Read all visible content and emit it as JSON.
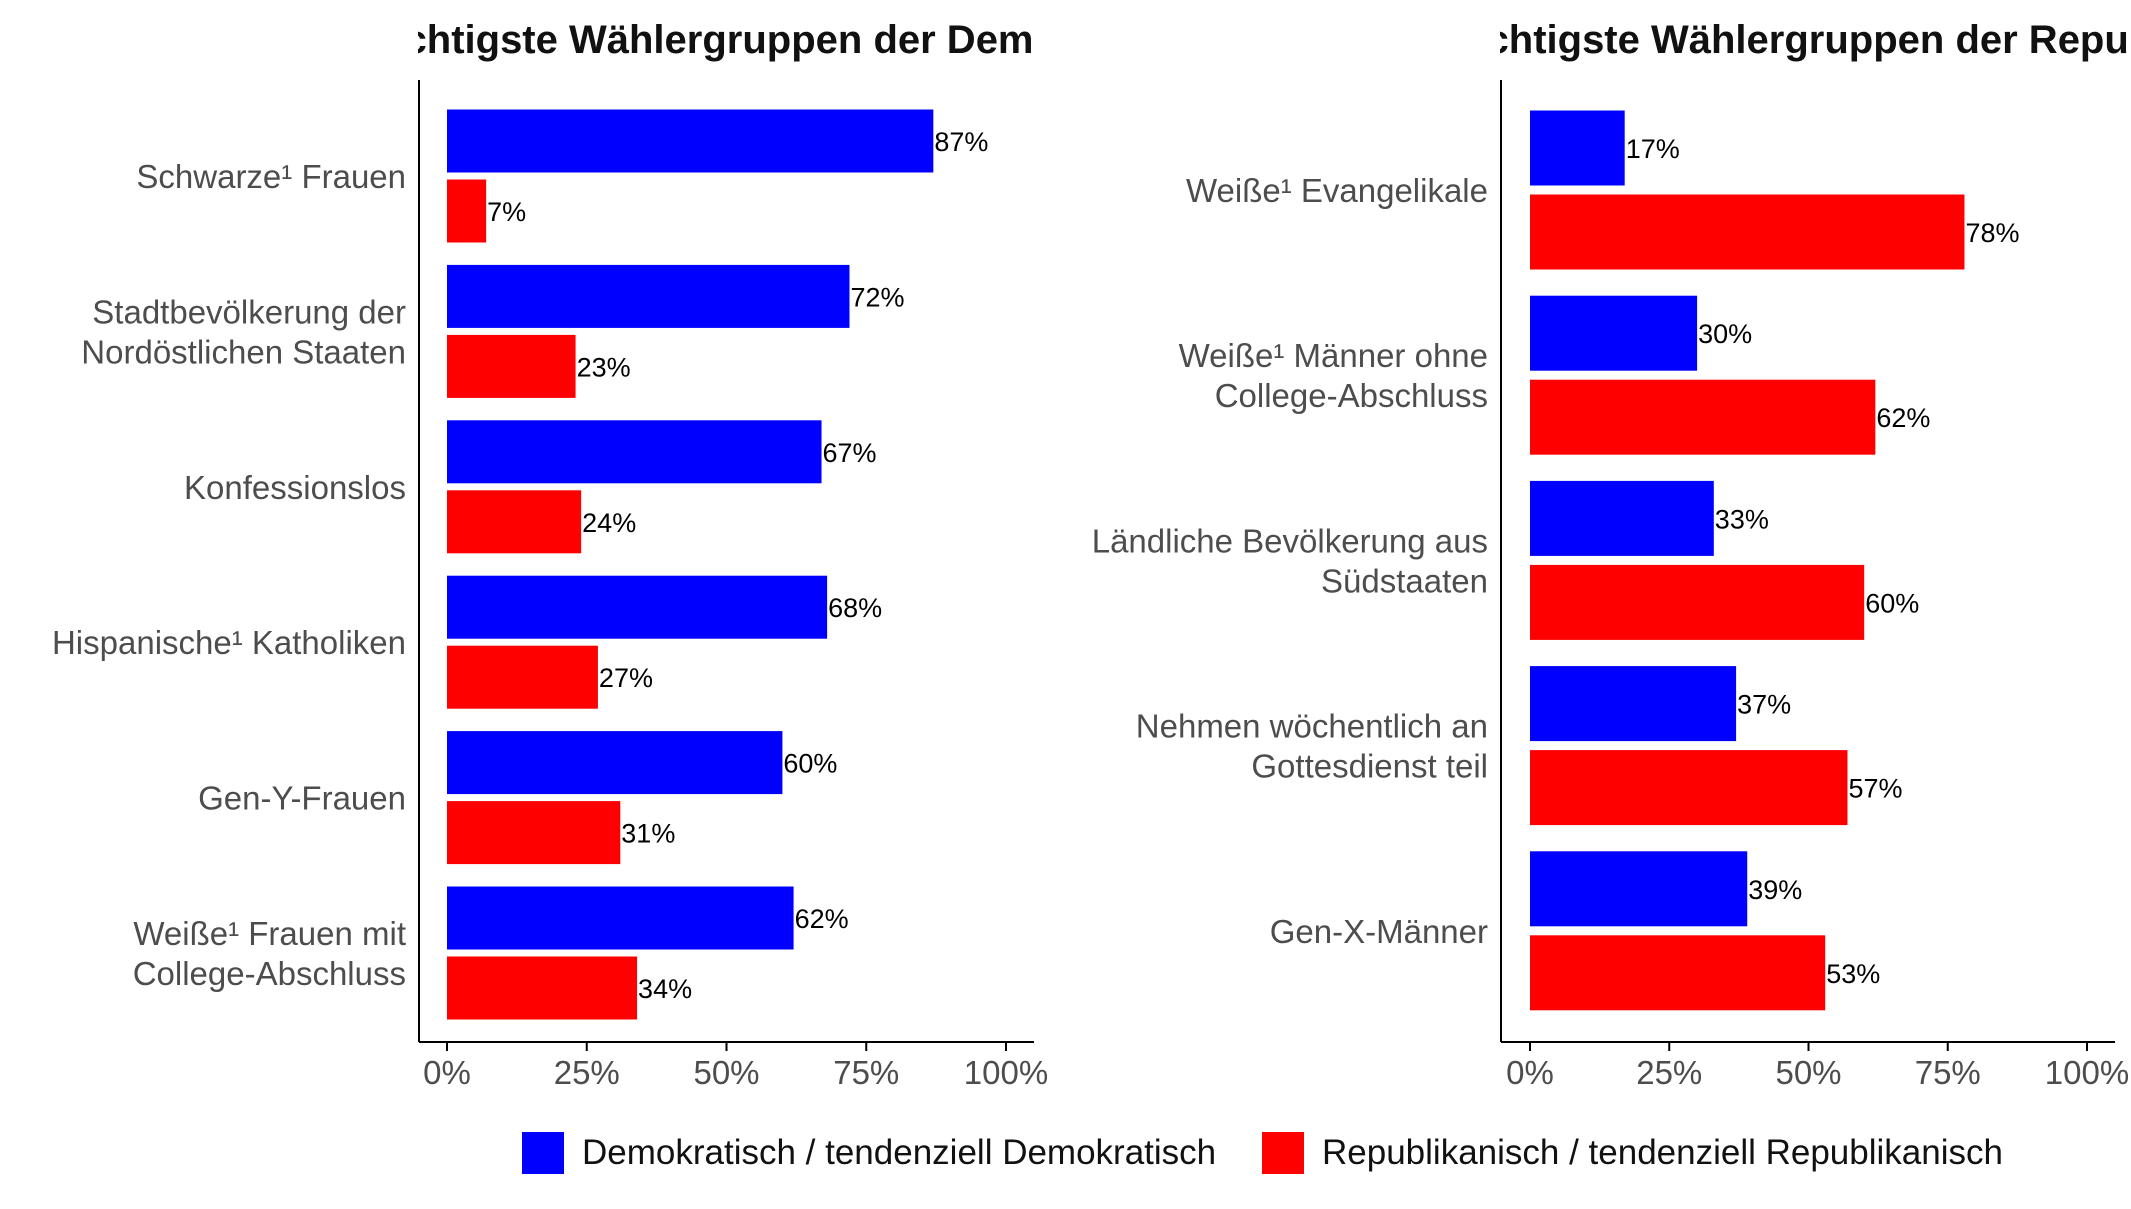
{
  "colors": {
    "democratic": "#0000ff",
    "republican": "#ff0000",
    "axis": "#000000",
    "label_text": "#4d4d4d",
    "value_text": "#000000"
  },
  "panels": {
    "left": {
      "title": "Wichtigste Wählergruppen der Demokraten"
    },
    "right": {
      "title": "Wichtigste Wählergruppen der Republikaner"
    }
  },
  "legend": {
    "democratic": "Demokratisch / tendenziell Demokratisch",
    "republican": "Republikanisch / tendenziell Republikanisch"
  },
  "chart_data": [
    {
      "type": "bar",
      "orientation": "horizontal",
      "title": "Wichtigste Wählergruppen der Demokraten",
      "categories": [
        [
          "Schwarze¹ Frauen"
        ],
        [
          "Stadtbevölkerung der",
          "Nordöstlichen Staaten"
        ],
        [
          "Konfessionslos"
        ],
        [
          "Hispanische¹ Katholiken"
        ],
        [
          "Gen-Y-Frauen"
        ],
        [
          "Weiße¹ Frauen mit",
          "College-Abschluss"
        ]
      ],
      "series": [
        {
          "name": "Demokratisch / tendenziell Demokratisch",
          "color": "#0000ff",
          "values": [
            87,
            72,
            67,
            68,
            60,
            62
          ]
        },
        {
          "name": "Republikanisch / tendenziell Republikanisch",
          "color": "#ff0000",
          "values": [
            7,
            23,
            24,
            27,
            31,
            34
          ]
        }
      ],
      "xlim": [
        0,
        100
      ],
      "xticks": [
        "0%",
        "25%",
        "50%",
        "75%",
        "100%"
      ],
      "xtick_values": [
        0,
        25,
        50,
        75,
        100
      ],
      "value_suffix": "%",
      "legend_position": "bottom",
      "grid": false
    },
    {
      "type": "bar",
      "orientation": "horizontal",
      "title": "Wichtigste Wählergruppen der Republikaner",
      "categories": [
        [
          "Weiße¹ Evangelikale"
        ],
        [
          "Weiße¹ Männer ohne",
          "College-Abschluss"
        ],
        [
          "Ländliche Bevölkerung aus",
          "Südstaaten"
        ],
        [
          "Nehmen wöchentlich an",
          "Gottesdienst teil"
        ],
        [
          "Gen-X-Männer"
        ]
      ],
      "series": [
        {
          "name": "Demokratisch / tendenziell Demokratisch",
          "color": "#0000ff",
          "values": [
            17,
            30,
            33,
            37,
            39
          ]
        },
        {
          "name": "Republikanisch / tendenziell Republikanisch",
          "color": "#ff0000",
          "values": [
            78,
            62,
            60,
            57,
            53
          ]
        }
      ],
      "xlim": [
        0,
        100
      ],
      "xticks": [
        "0%",
        "25%",
        "50%",
        "75%",
        "100%"
      ],
      "xtick_values": [
        0,
        25,
        50,
        75,
        100
      ],
      "value_suffix": "%",
      "legend_position": "bottom",
      "grid": false
    }
  ]
}
